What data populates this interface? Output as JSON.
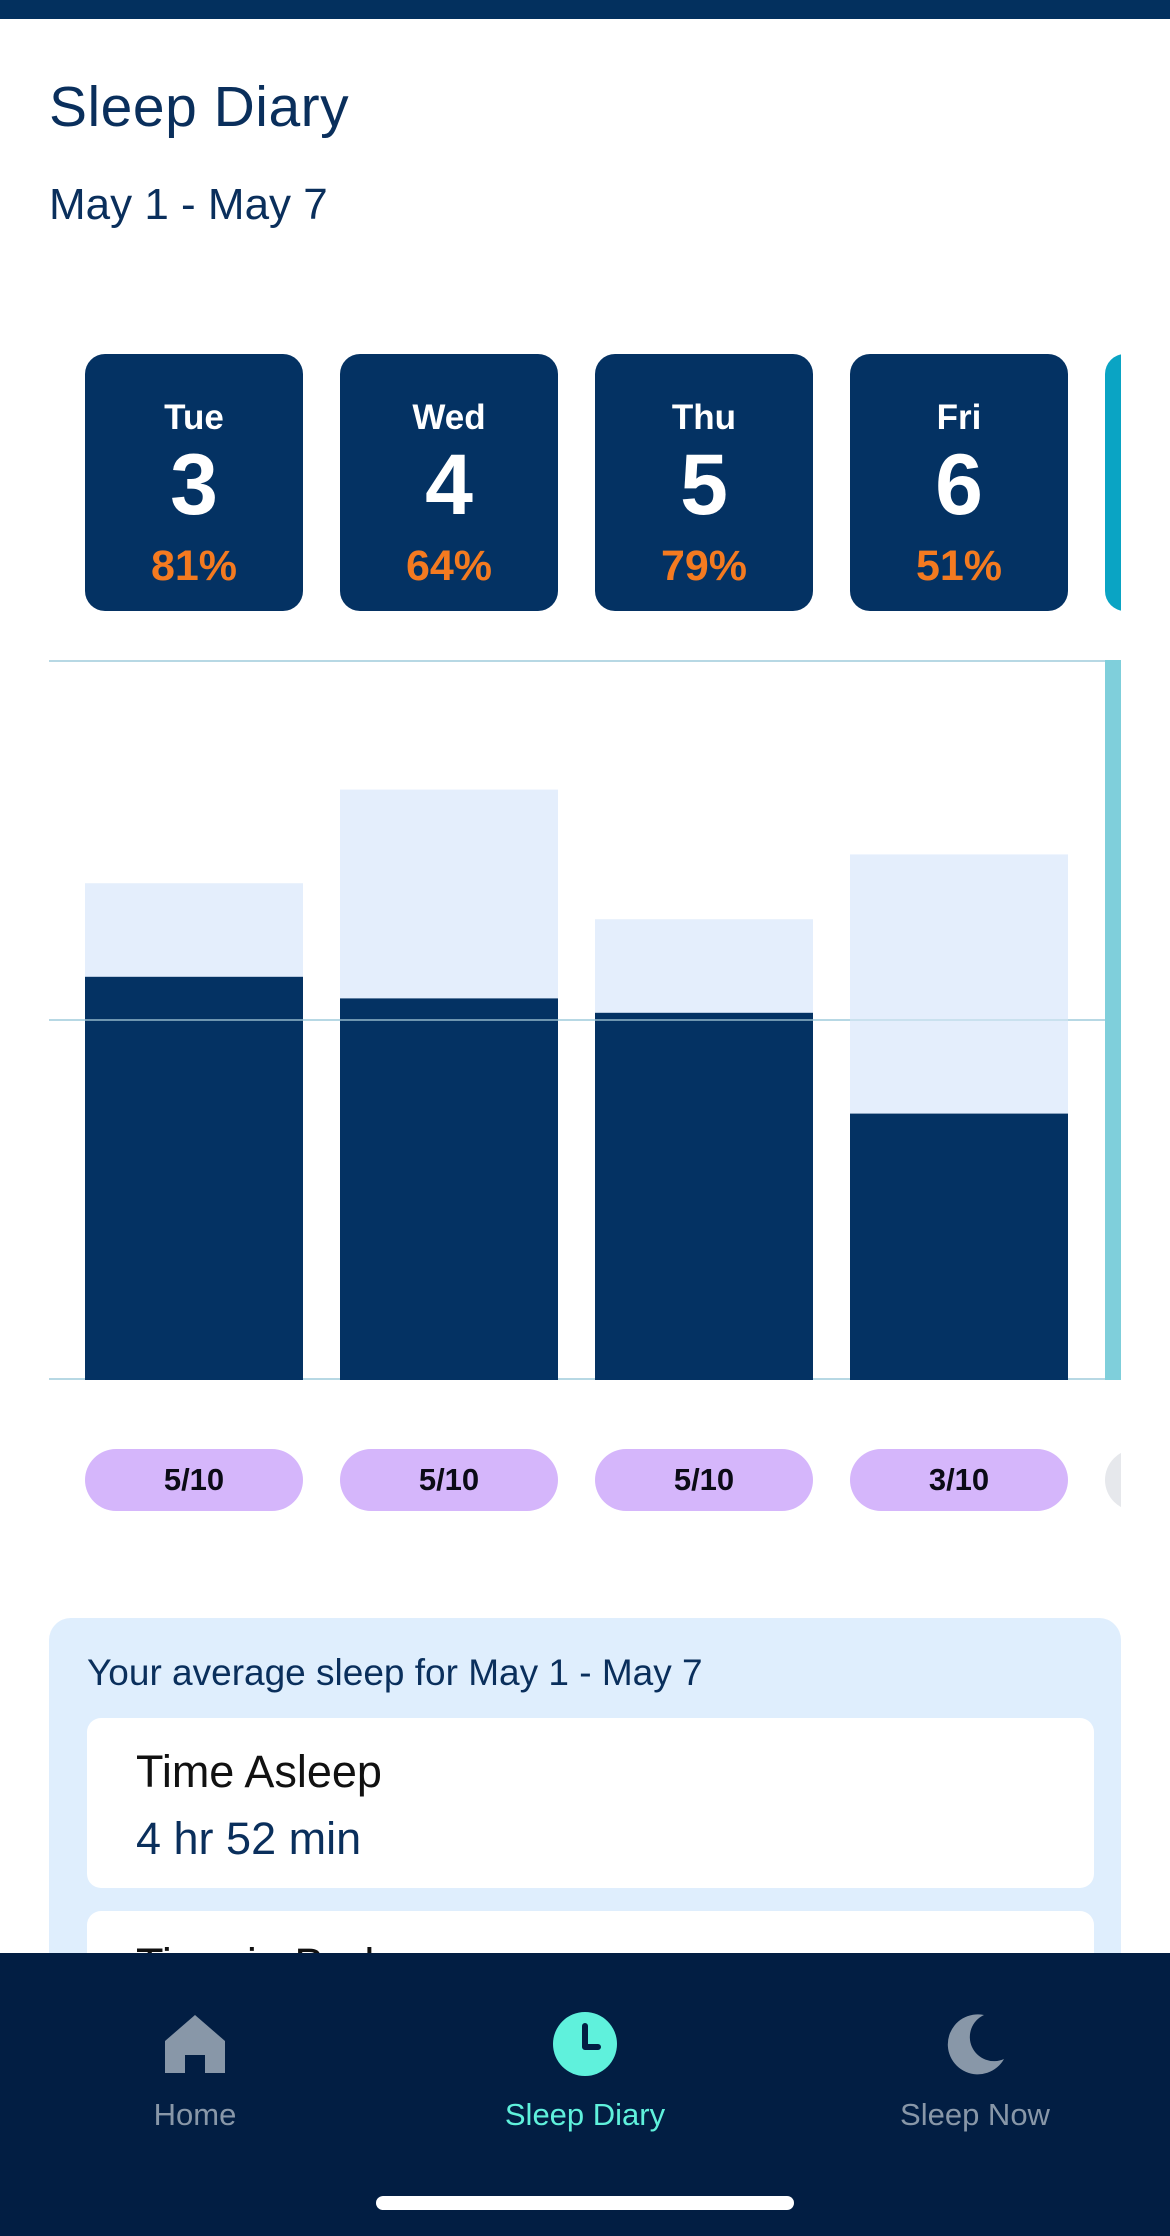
{
  "header": {
    "title": "Sleep Diary",
    "date_range": "May 1 - May 7"
  },
  "days": [
    {
      "day": "Tue",
      "date": "3",
      "efficiency": "81%",
      "rating": "5/10",
      "time_in_bed_fraction": 0.69,
      "asleep_fraction": 0.56
    },
    {
      "day": "Wed",
      "date": "4",
      "efficiency": "64%",
      "rating": "5/10",
      "time_in_bed_fraction": 0.82,
      "asleep_fraction": 0.53
    },
    {
      "day": "Thu",
      "date": "5",
      "efficiency": "79%",
      "rating": "5/10",
      "time_in_bed_fraction": 0.64,
      "asleep_fraction": 0.51
    },
    {
      "day": "Fri",
      "date": "6",
      "efficiency": "51%",
      "rating": "3/10",
      "time_in_bed_fraction": 0.73,
      "asleep_fraction": 0.37
    }
  ],
  "colors": {
    "asleep": "#043263",
    "in_bed": "#e4eefc",
    "gridline": "#b7d8e4",
    "selected_accent": "#7fcfdb",
    "efficiency": "#f47a20",
    "rating_pill": "#d5b6fb"
  },
  "summary": {
    "title": "Your average sleep for May 1 - May 7",
    "stats": [
      {
        "label": "Time Asleep",
        "value": "4 hr 52 min"
      },
      {
        "label": "Time in Bed",
        "value": ""
      }
    ]
  },
  "nav": {
    "items": [
      {
        "label": "Home",
        "icon": "home-icon",
        "active": false
      },
      {
        "label": "Sleep Diary",
        "icon": "clock-icon",
        "active": true
      },
      {
        "label": "Sleep Now",
        "icon": "moon-icon",
        "active": false
      }
    ]
  }
}
